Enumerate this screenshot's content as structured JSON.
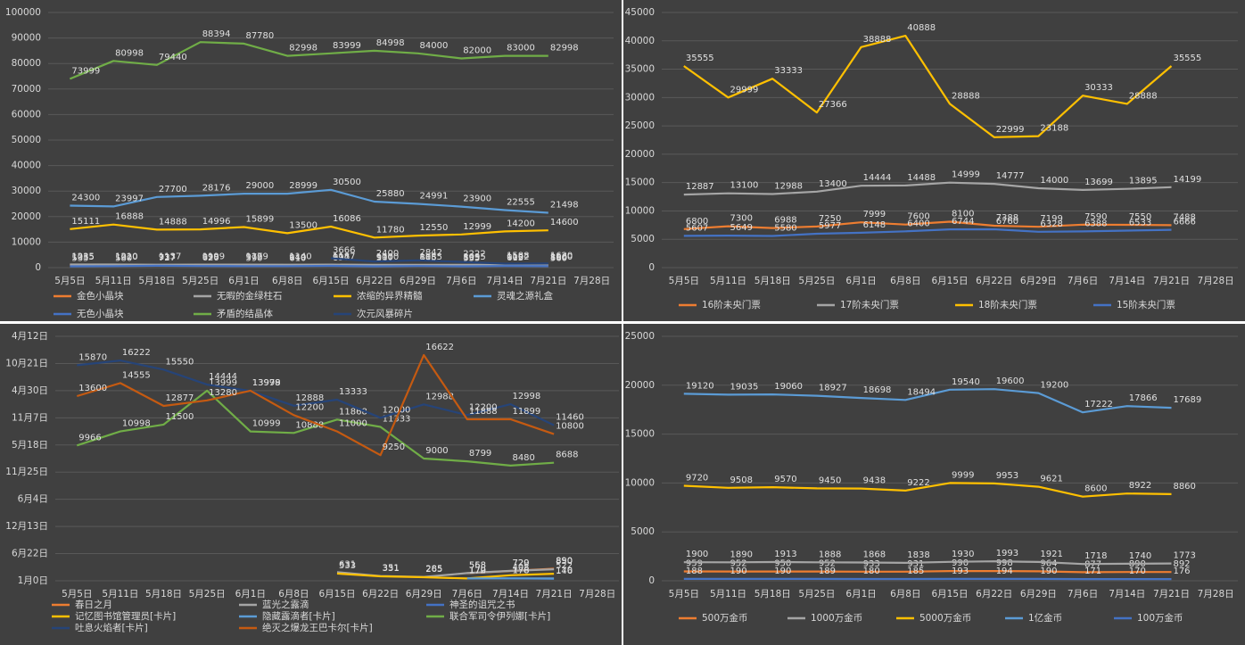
{
  "chart_data": [
    {
      "type": "line",
      "categories": [
        "5月5日",
        "5月11日",
        "5月18日",
        "5月25日",
        "6月1日",
        "6月8日",
        "6月15日",
        "6月22日",
        "6月29日",
        "7月6日",
        "7月14日",
        "7月21日",
        "7月28日"
      ],
      "ylim": [
        0,
        100000
      ],
      "yticks": [
        0,
        10000,
        20000,
        30000,
        40000,
        50000,
        60000,
        70000,
        80000,
        90000,
        100000
      ],
      "grid": true,
      "legend": "bottom",
      "series": [
        {
          "name": "金色小晶块",
          "color": "#ed7d31",
          "values": [
            1035,
            1020,
            937,
            999,
            979,
            940,
            927,
            900,
            885,
            895,
            902,
            860,
            null
          ]
        },
        {
          "name": "无暇的金绿柱石",
          "color": "#a5a5a5",
          "values": [
            1235,
            1210,
            1137,
            1199,
            1179,
            1140,
            1187,
            1100,
            1085,
            1095,
            1102,
            1060,
            null
          ]
        },
        {
          "name": "浓缩的异界精髓",
          "color": "#ffc000",
          "values": [
            15111,
            16888,
            14888,
            14996,
            15899,
            13500,
            16086,
            11780,
            12550,
            12999,
            14200,
            14600,
            null
          ]
        },
        {
          "name": "灵魂之源礼盒",
          "color": "#5b9bd5",
          "values": [
            24300,
            23997,
            27700,
            28176,
            29000,
            28999,
            30500,
            25880,
            24991,
            23900,
            22555,
            21498,
            null
          ]
        },
        {
          "name": "无色小晶块",
          "color": "#4472c4",
          "values": [
            535,
            580,
            727,
            620,
            590,
            610,
            690,
            531,
            615,
            535,
            615,
            560,
            null
          ]
        },
        {
          "name": "矛盾的结晶体",
          "color": "#70ad47",
          "values": [
            73999,
            80998,
            79440,
            88394,
            87780,
            82998,
            83999,
            84998,
            84000,
            82000,
            83000,
            82998,
            null
          ]
        },
        {
          "name": "次元风暴碎片",
          "color": "#264478",
          "values": [
            null,
            null,
            null,
            null,
            null,
            null,
            3666,
            2400,
            2842,
            2222,
            1588,
            1620,
            null
          ]
        }
      ]
    },
    {
      "type": "line",
      "categories": [
        "5月5日",
        "5月11日",
        "5月18日",
        "5月25日",
        "6月1日",
        "6月8日",
        "6月15日",
        "6月22日",
        "6月29日",
        "7月6日",
        "7月14日",
        "7月21日",
        "7月28日"
      ],
      "ylim": [
        0,
        45000
      ],
      "yticks": [
        0,
        5000,
        10000,
        15000,
        20000,
        25000,
        30000,
        35000,
        40000,
        45000
      ],
      "grid": true,
      "legend": "bottom",
      "series": [
        {
          "name": "16阶未央门票",
          "color": "#ed7d31",
          "values": [
            6800,
            7300,
            6988,
            7250,
            7999,
            7600,
            8100,
            7388,
            7199,
            7590,
            7550,
            7488,
            null
          ]
        },
        {
          "name": "17阶未央门票",
          "color": "#a5a5a5",
          "values": [
            12887,
            13100,
            12988,
            13400,
            14444,
            14488,
            14999,
            14777,
            14000,
            13699,
            13895,
            14199,
            null
          ]
        },
        {
          "name": "18阶未央门票",
          "color": "#ffc000",
          "values": [
            35555,
            29999,
            33333,
            27366,
            38888,
            40888,
            28888,
            22999,
            23188,
            30333,
            28888,
            35555,
            null
          ]
        },
        {
          "name": "15阶未央门票",
          "color": "#4472c4",
          "values": [
            5607,
            5649,
            5580,
            5977,
            6148,
            6400,
            6744,
            6760,
            6328,
            6388,
            6533,
            6666,
            null
          ]
        }
      ]
    },
    {
      "type": "line",
      "categories": [
        "5月5日",
        "5月11日",
        "5月18日",
        "5月25日",
        "6月1日",
        "6月8日",
        "6月15日",
        "6月22日",
        "6月29日",
        "7月6日",
        "7月14日",
        "7月21日",
        "7月28日"
      ],
      "ylim": [
        0,
        18000
      ],
      "yticks": [
        {
          "value": 0,
          "label": "1月0日"
        },
        {
          "value": 2000,
          "label": "6月22日"
        },
        {
          "value": 4000,
          "label": "12月13日"
        },
        {
          "value": 6000,
          "label": "6月4日"
        },
        {
          "value": 8000,
          "label": "11月25日"
        },
        {
          "value": 10000,
          "label": "5月18日"
        },
        {
          "value": 12000,
          "label": "11月7日"
        },
        {
          "value": 14000,
          "label": "4月30日"
        },
        {
          "value": 16000,
          "label": "10月21日"
        },
        {
          "value": 18000,
          "label": "4月12日"
        }
      ],
      "grid": true,
      "legend": "bottom",
      "series": [
        {
          "name": "春日之月",
          "color": "#ed7d31",
          "values": [
            null,
            null,
            null,
            null,
            null,
            null,
            null,
            null,
            null,
            558,
            720,
            890,
            null
          ]
        },
        {
          "name": "蓝光之露滴",
          "color": "#a5a5a5",
          "values": [
            null,
            null,
            null,
            null,
            null,
            null,
            631,
            351,
            285,
            568,
            729,
            850,
            null
          ]
        },
        {
          "name": "神圣的诅咒之书",
          "color": "#4472c4",
          "values": [
            null,
            null,
            null,
            null,
            null,
            null,
            null,
            null,
            null,
            179,
            178,
            146,
            null
          ]
        },
        {
          "name": "记忆图书馆管理员[卡片]",
          "color": "#ffc000",
          "values": [
            null,
            null,
            null,
            null,
            null,
            null,
            533,
            331,
            265,
            170,
            408,
            522,
            null
          ]
        },
        {
          "name": "隐藏露滴者[卡片]",
          "color": "#5b9bd5",
          "values": [
            null,
            null,
            null,
            null,
            null,
            null,
            null,
            null,
            null,
            172,
            176,
            170,
            null
          ]
        },
        {
          "name": "联合军司令伊列娜[卡片]",
          "color": "#70ad47",
          "values": [
            9966,
            10998,
            11500,
            13999,
            10999,
            10888,
            11868,
            11333,
            9000,
            8799,
            8480,
            8688,
            null
          ]
        },
        {
          "name": "吐息火焰者[卡片]",
          "color": "#264478",
          "values": [
            15870,
            16222,
            15550,
            14444,
            13978,
            12888,
            13333,
            12000,
            12988,
            12200,
            12998,
            11460,
            null
          ]
        },
        {
          "name": "绝灭之爆龙王巴卡尔[卡片]",
          "color": "#c55a11",
          "values": [
            13600,
            14555,
            12877,
            13280,
            13999,
            12200,
            11000,
            9250,
            16622,
            11888,
            11899,
            10800,
            null
          ]
        }
      ]
    },
    {
      "type": "line",
      "categories": [
        "5月5日",
        "5月11日",
        "5月18日",
        "5月25日",
        "6月1日",
        "6月8日",
        "6月15日",
        "6月22日",
        "6月29日",
        "7月6日",
        "7月14日",
        "7月21日",
        "7月28日"
      ],
      "ylim": [
        0,
        25000
      ],
      "yticks": [
        0,
        5000,
        10000,
        15000,
        20000,
        25000
      ],
      "grid": true,
      "legend": "bottom",
      "series": [
        {
          "name": "500万金币",
          "color": "#ed7d31",
          "values": [
            959,
            952,
            950,
            952,
            933,
            931,
            990,
            998,
            964,
            877,
            890,
            892,
            null
          ]
        },
        {
          "name": "1000万金币",
          "color": "#a5a5a5",
          "values": [
            1900,
            1890,
            1913,
            1888,
            1868,
            1838,
            1930,
            1993,
            1921,
            1718,
            1740,
            1773,
            null
          ]
        },
        {
          "name": "5000万金币",
          "color": "#ffc000",
          "values": [
            9720,
            9508,
            9570,
            9450,
            9438,
            9222,
            9999,
            9953,
            9621,
            8600,
            8922,
            8860,
            null
          ]
        },
        {
          "name": "1亿金币",
          "color": "#5b9bd5",
          "values": [
            19120,
            19035,
            19060,
            18927,
            18698,
            18494,
            19540,
            19600,
            19200,
            17222,
            17866,
            17689,
            null
          ]
        },
        {
          "name": "100万金币",
          "color": "#4472c4",
          "values": [
            188,
            190,
            190,
            189,
            180,
            185,
            193,
            194,
            190,
            171,
            170,
            176,
            null
          ]
        }
      ]
    }
  ]
}
